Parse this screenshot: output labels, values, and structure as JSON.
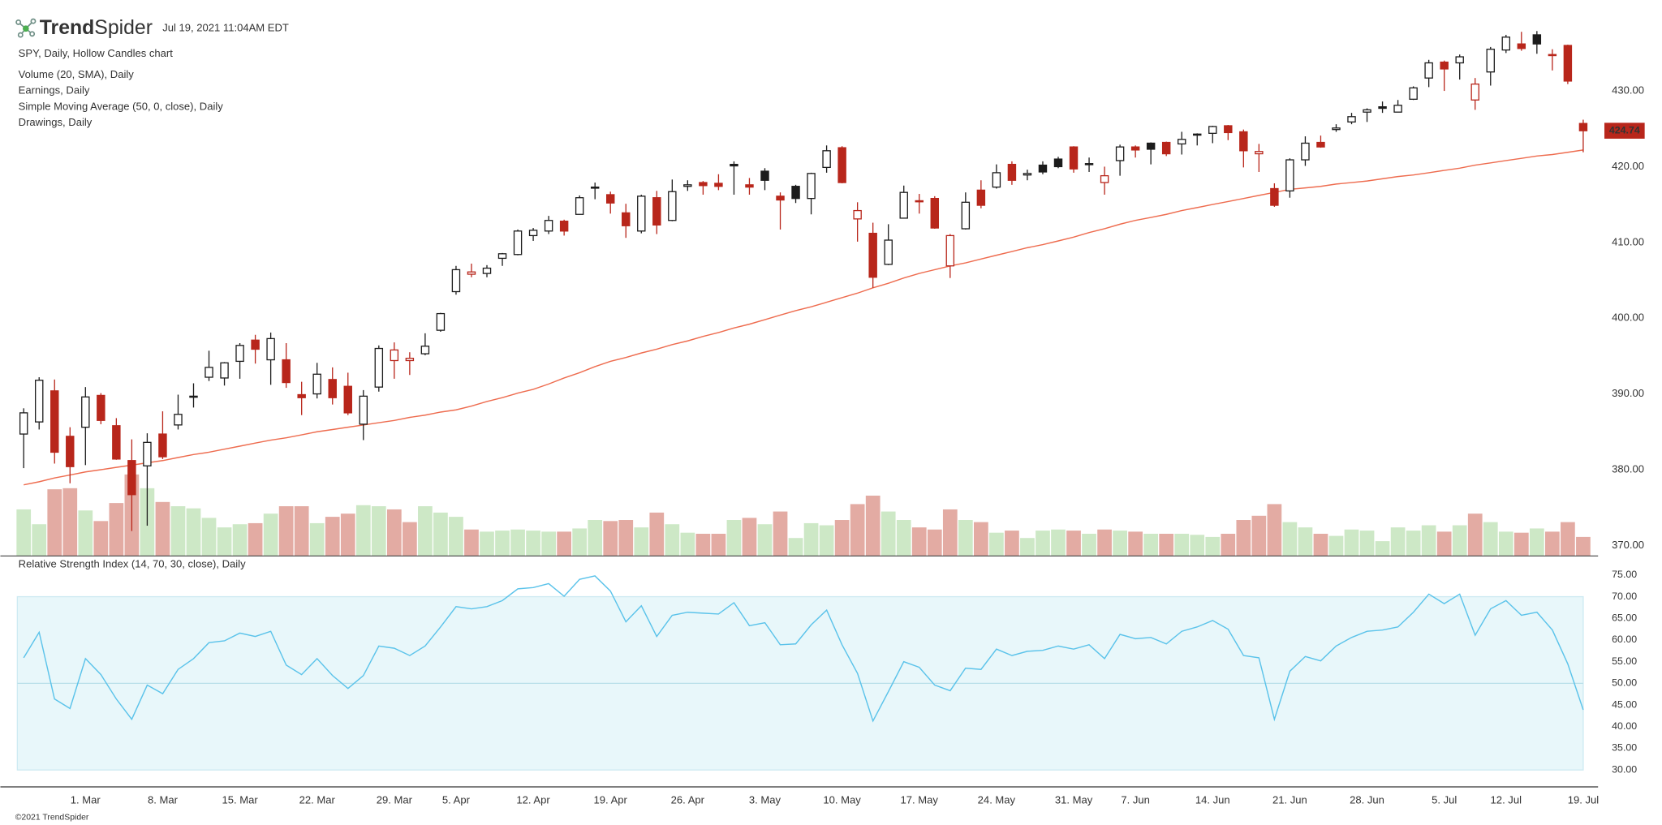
{
  "header": {
    "brand": [
      "Trend",
      "Spider"
    ],
    "timestamp": "Jul 19, 2021 11:04AM EDT"
  },
  "footer": {
    "copyright": "©2021 TrendSpider"
  },
  "chart_data": [
    {
      "type": "candlestick",
      "title": "SPY, Daily, Hollow Candles chart",
      "categories": [
        null,
        null,
        null,
        null,
        "1. Mar",
        null,
        null,
        null,
        null,
        "8. Mar",
        null,
        null,
        null,
        null,
        "15. Mar",
        null,
        null,
        null,
        null,
        "22. Mar",
        null,
        null,
        null,
        null,
        "29. Mar",
        null,
        null,
        null,
        "5. Apr",
        null,
        null,
        null,
        null,
        "12. Apr",
        null,
        null,
        null,
        null,
        "19. Apr",
        null,
        null,
        null,
        null,
        "26. Apr",
        null,
        null,
        null,
        null,
        "3. May",
        null,
        null,
        null,
        null,
        "10. May",
        null,
        null,
        null,
        null,
        "17. May",
        null,
        null,
        null,
        null,
        "24. May",
        null,
        null,
        null,
        null,
        "31. May",
        null,
        null,
        null,
        "7. Jun",
        null,
        null,
        null,
        null,
        "14. Jun",
        null,
        null,
        null,
        null,
        "21. Jun",
        null,
        null,
        null,
        null,
        "28. Jun",
        null,
        null,
        null,
        null,
        "5. Jul",
        null,
        null,
        null,
        "12. Jul",
        null,
        null,
        null,
        null,
        "19. Jul"
      ],
      "open": [
        384.7,
        386.3,
        390.4,
        384.4,
        385.6,
        389.8,
        385.8,
        381.2,
        380.5,
        384.7,
        385.9,
        389.7,
        392.2,
        392.1,
        394.3,
        397.1,
        394.5,
        394.5,
        389.9,
        390.0,
        391.9,
        391.0,
        386.0,
        390.9,
        394.4,
        394.4,
        395.3,
        398.4,
        403.5,
        405.8,
        405.9,
        407.9,
        408.4,
        410.9,
        411.5,
        412.8,
        413.7,
        417.3,
        416.3,
        413.9,
        411.5,
        415.9,
        412.9,
        417.4,
        417.9,
        417.8,
        420.3,
        417.6,
        419.4,
        416.1,
        417.4,
        415.8,
        419.9,
        422.5,
        413.1,
        411.2,
        407.1,
        413.2,
        415.4,
        415.8,
        406.9,
        411.8,
        416.9,
        417.3,
        420.3,
        418.9,
        420.2,
        421.0,
        422.6,
        420.4,
        417.9,
        420.8,
        422.6,
        423.1,
        423.2,
        423.0,
        424.2,
        424.4,
        425.4,
        424.6,
        421.7,
        417.1,
        416.8,
        420.9,
        423.2,
        424.9,
        425.9,
        427.2,
        427.9,
        427.2,
        428.9,
        431.7,
        433.8,
        433.7,
        428.8,
        432.5,
        435.4,
        436.2,
        437.4,
        434.8,
        436.0,
        425.7
      ],
      "high": [
        388.1,
        392.2,
        391.9,
        385.6,
        390.9,
        390.1,
        386.8,
        384.0,
        384.8,
        387.7,
        389.9,
        391.4,
        395.7,
        394.2,
        396.7,
        397.8,
        398.1,
        396.7,
        391.6,
        394.1,
        393.5,
        392.8,
        390.5,
        396.4,
        396.8,
        395.5,
        398.0,
        400.7,
        406.9,
        407.2,
        407.0,
        408.6,
        411.7,
        411.9,
        413.5,
        413.0,
        416.2,
        417.9,
        416.7,
        415.1,
        416.3,
        416.8,
        418.3,
        418.2,
        418.1,
        419.0,
        420.7,
        418.5,
        419.8,
        416.6,
        417.6,
        419.2,
        422.8,
        422.7,
        415.3,
        412.6,
        412.4,
        417.5,
        416.4,
        416.1,
        411.1,
        416.6,
        418.2,
        420.3,
        420.7,
        419.6,
        420.7,
        421.3,
        422.7,
        421.2,
        420.0,
        422.9,
        422.8,
        423.2,
        423.3,
        424.6,
        424.4,
        425.4,
        425.5,
        424.9,
        423.0,
        417.8,
        421.1,
        424.0,
        424.1,
        425.6,
        427.1,
        427.7,
        428.6,
        428.8,
        430.6,
        434.1,
        434.0,
        434.8,
        431.7,
        435.8,
        437.4,
        437.8,
        437.9,
        435.5,
        436.1,
        426.2
      ],
      "low": [
        380.2,
        385.3,
        380.8,
        378.2,
        380.6,
        386.0,
        381.3,
        371.9,
        372.6,
        381.4,
        385.3,
        388.2,
        391.7,
        391.1,
        392.0,
        394.0,
        391.2,
        390.8,
        387.2,
        389.4,
        388.6,
        387.2,
        383.9,
        390.3,
        392.0,
        392.5,
        395.1,
        398.2,
        403.1,
        405.4,
        405.4,
        406.9,
        408.3,
        410.2,
        411.1,
        410.9,
        413.7,
        415.7,
        413.8,
        410.6,
        411.2,
        411.1,
        412.8,
        416.8,
        416.3,
        416.9,
        416.3,
        416.3,
        416.9,
        411.7,
        415.2,
        413.7,
        419.2,
        417.8,
        410.1,
        404.0,
        407.0,
        413.2,
        413.8,
        411.8,
        405.3,
        411.7,
        414.5,
        417.1,
        417.6,
        418.2,
        419.0,
        419.8,
        419.2,
        419.3,
        416.3,
        418.8,
        421.2,
        420.3,
        421.4,
        421.6,
        422.8,
        423.1,
        423.5,
        419.9,
        419.3,
        414.7,
        415.9,
        420.1,
        422.5,
        424.6,
        425.6,
        425.9,
        427.1,
        427.2,
        428.8,
        430.5,
        430.0,
        431.5,
        427.5,
        430.7,
        435.0,
        435.3,
        434.9,
        432.7,
        430.9,
        421.9
      ],
      "close": [
        387.5,
        391.8,
        382.3,
        380.4,
        389.6,
        386.5,
        381.4,
        376.7,
        383.6,
        381.7,
        387.3,
        389.6,
        393.5,
        394.1,
        396.4,
        395.9,
        397.3,
        391.5,
        389.5,
        392.6,
        389.5,
        387.5,
        389.7,
        396.0,
        395.8,
        394.7,
        396.3,
        400.6,
        406.4,
        406.1,
        406.6,
        408.5,
        411.5,
        411.6,
        412.9,
        411.5,
        415.9,
        417.3,
        415.2,
        412.2,
        416.1,
        412.3,
        416.7,
        417.6,
        417.5,
        417.4,
        420.1,
        417.3,
        418.2,
        415.6,
        415.8,
        419.1,
        422.1,
        417.9,
        414.2,
        405.4,
        410.3,
        416.6,
        415.5,
        411.9,
        410.9,
        415.3,
        414.9,
        419.2,
        418.2,
        419.1,
        419.3,
        420.0,
        419.7,
        420.3,
        418.8,
        422.6,
        422.2,
        422.3,
        421.7,
        423.6,
        424.3,
        425.3,
        424.5,
        422.1,
        422.0,
        414.9,
        420.9,
        423.1,
        422.6,
        425.1,
        426.6,
        427.5,
        427.7,
        428.1,
        430.4,
        433.7,
        432.9,
        434.5,
        430.9,
        435.5,
        437.1,
        435.6,
        436.2,
        434.8,
        431.3,
        424.74
      ],
      "up_color": "#1c1c1c",
      "down_color": "#b8261b",
      "ylim": [
        368.6,
        442.0
      ],
      "yticks": [
        {
          "value": 370,
          "label": "370.00"
        },
        {
          "value": 380,
          "label": "380.00"
        },
        {
          "value": 390,
          "label": "390.00"
        },
        {
          "value": 400,
          "label": "400.00"
        },
        {
          "value": 410,
          "label": "410.00"
        },
        {
          "value": 420,
          "label": "420.00"
        },
        {
          "value": 430,
          "label": "430.00"
        }
      ],
      "grid": false,
      "series": [
        {
          "name": "Volume (20, SMA), Daily",
          "type": "volume",
          "color": "#4fb8e6",
          "up_color": "#cde8c6",
          "down_color": "#e3aba3",
          "values": [
            88,
            60,
            126,
            128,
            86,
            66,
            100,
            154,
            128,
            102,
            94,
            90,
            72,
            54,
            60,
            62,
            80,
            94,
            94,
            62,
            74,
            80,
            96,
            94,
            88,
            64,
            94,
            82,
            74,
            50,
            46,
            48,
            50,
            48,
            46,
            46,
            52,
            68,
            66,
            68,
            54,
            82,
            60,
            44,
            42,
            42,
            68,
            72,
            60,
            84,
            34,
            62,
            58,
            68,
            98,
            114,
            84,
            68,
            54,
            50,
            88,
            68,
            64,
            44,
            48,
            34,
            48,
            50,
            48,
            42,
            50,
            48,
            46,
            42,
            42,
            42,
            40,
            36,
            42,
            68,
            76,
            98,
            64,
            54,
            42,
            38,
            50,
            48,
            28,
            54,
            48,
            58,
            46,
            58,
            80,
            64,
            46,
            44,
            52,
            46,
            64,
            36
          ]
        },
        {
          "name": "Earnings, Daily",
          "color": "#555555"
        },
        {
          "name": "Simple Moving Average (50, 0, close), Daily",
          "type": "line",
          "color": "#ee6c4f",
          "values": [
            378.0,
            378.4,
            378.9,
            379.3,
            379.7,
            380.0,
            380.3,
            380.6,
            380.9,
            381.2,
            381.6,
            382.0,
            382.3,
            382.7,
            383.1,
            383.5,
            383.9,
            384.2,
            384.6,
            385.0,
            385.3,
            385.6,
            385.9,
            386.2,
            386.5,
            386.9,
            387.2,
            387.6,
            387.9,
            388.4,
            389.0,
            389.5,
            390.1,
            390.6,
            391.3,
            392.1,
            392.8,
            393.6,
            394.3,
            394.8,
            395.4,
            395.9,
            396.5,
            397.0,
            397.6,
            398.1,
            398.7,
            399.2,
            399.8,
            400.4,
            401.0,
            401.5,
            402.1,
            402.7,
            403.3,
            404.0,
            404.6,
            405.3,
            405.9,
            406.4,
            406.9,
            407.3,
            407.8,
            408.3,
            408.8,
            409.3,
            409.7,
            410.2,
            410.7,
            411.3,
            411.8,
            412.4,
            412.9,
            413.3,
            413.7,
            414.2,
            414.6,
            415.0,
            415.4,
            415.8,
            416.2,
            416.6,
            417.0,
            417.2,
            417.4,
            417.7,
            417.9,
            418.1,
            418.4,
            418.7,
            418.9,
            419.2,
            419.5,
            419.8,
            420.2,
            420.5,
            420.8,
            421.1,
            421.4,
            421.6,
            421.9,
            422.2
          ]
        },
        {
          "name": "Drawings, Daily",
          "color": "#555555"
        }
      ]
    },
    {
      "type": "line",
      "title": "Relative Strength Index (14, 70, 30, close), Daily",
      "color": "#5bc3ea",
      "values": [
        55.9,
        61.8,
        46.4,
        44.2,
        55.7,
        52.0,
        46.4,
        41.7,
        49.6,
        47.6,
        53.2,
        55.7,
        59.4,
        59.8,
        61.6,
        60.8,
        62.0,
        54.2,
        52.0,
        55.7,
        51.8,
        48.8,
        51.8,
        58.6,
        58.1,
        56.4,
        58.6,
        63.0,
        67.7,
        67.2,
        67.7,
        69.1,
        71.8,
        72.1,
        73.0,
        70.1,
        74.0,
        74.8,
        71.3,
        64.2,
        67.9,
        60.8,
        65.7,
        66.4,
        66.2,
        66.0,
        68.6,
        63.3,
        64.0,
        58.9,
        59.1,
        63.5,
        66.9,
        58.9,
        52.3,
        41.3,
        48.1,
        55.0,
        53.7,
        49.6,
        48.3,
        53.5,
        53.2,
        57.9,
        56.4,
        57.4,
        57.6,
        58.6,
        57.9,
        58.9,
        55.7,
        61.3,
        60.3,
        60.6,
        59.1,
        62.0,
        63.0,
        64.5,
        62.5,
        56.4,
        55.9,
        41.7,
        52.8,
        56.2,
        55.2,
        58.6,
        60.6,
        62.0,
        62.3,
        63.0,
        66.4,
        70.6,
        68.4,
        70.6,
        61.1,
        67.2,
        69.1,
        65.7,
        66.4,
        62.3,
        54.5,
        43.9
      ],
      "ylim": [
        26.1,
        78.9
      ],
      "yticks": [
        {
          "value": 30,
          "label": "30.00"
        },
        {
          "value": 35,
          "label": "35.00"
        },
        {
          "value": 40,
          "label": "40.00"
        },
        {
          "value": 45,
          "label": "45.00"
        },
        {
          "value": 50,
          "label": "50.00"
        },
        {
          "value": 55,
          "label": "55.00"
        },
        {
          "value": 60,
          "label": "60.00"
        },
        {
          "value": 65,
          "label": "65.00"
        },
        {
          "value": 70,
          "label": "70.00"
        },
        {
          "value": 75,
          "label": "75.00"
        }
      ],
      "band": [
        30,
        70
      ],
      "band_color": "#e8f7fa",
      "band_line_color": "#cdeaf2",
      "midline": 50,
      "midline_color": "#b9dfe9"
    }
  ]
}
